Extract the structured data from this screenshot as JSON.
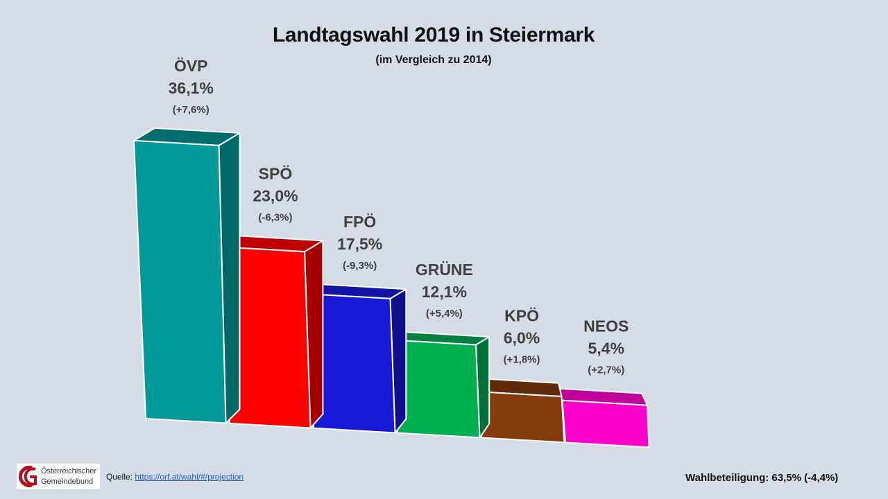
{
  "chart_data": {
    "type": "bar",
    "style": "3d-column",
    "title": "Landtagswahl 2019 in Steiermark",
    "subtitle": "(im Vergleich zu 2014)",
    "xlabel": "",
    "ylabel": "",
    "grid": false,
    "legend": "none",
    "categories": [
      "ÖVP",
      "SPÖ",
      "FPÖ",
      "GRÜNE",
      "KPÖ",
      "NEOS"
    ],
    "values": [
      36.1,
      23.0,
      17.5,
      12.1,
      6.0,
      5.4
    ],
    "changes": [
      7.6,
      -6.3,
      -9.3,
      5.4,
      1.8,
      2.7
    ],
    "value_labels": [
      "36,1%",
      "23,0%",
      "17,5%",
      "12,1%",
      "6,0%",
      "5,4%"
    ],
    "change_labels": [
      "(+7,6%)",
      "(-6,3%)",
      "(-9,3%)",
      "(+5,4%)",
      "(+1,8%)",
      "(+2,7%)"
    ],
    "colors": [
      {
        "front": "#009999",
        "top": "#006e6e",
        "side": "#006666"
      },
      {
        "front": "#ff0000",
        "top": "#c00000",
        "side": "#a80000"
      },
      {
        "front": "#1a1ad6",
        "top": "#1414a8",
        "side": "#10108c"
      },
      {
        "front": "#00b050",
        "top": "#008040",
        "side": "#007038"
      },
      {
        "front": "#843c0c",
        "top": "#5f2a08",
        "side": "#5f2a08"
      },
      {
        "front": "#ff00cc",
        "top": "#c0009a",
        "side": "#c0009a"
      }
    ]
  },
  "footer": {
    "logo_line1": "Österreichischer",
    "logo_line2": "Gemeindebund",
    "source_label": "Quelle: ",
    "source_link": "https://orf.at/wahl/#/projection",
    "turnout": "Wahlbeteiligung: 63,5% (-4,4%)"
  }
}
